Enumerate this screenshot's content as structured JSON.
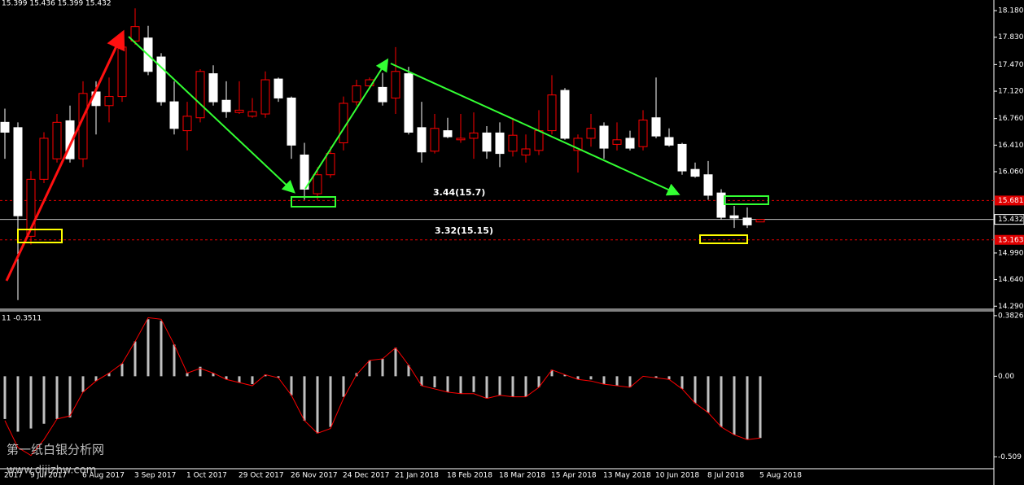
{
  "chart_data": [
    {
      "type": "candlestick",
      "title": "15.399 15.436 15.399 15.432",
      "categories": [
        "2017",
        null,
        "9 Jul 2017",
        null,
        null,
        null,
        "6 Aug 2017",
        null,
        null,
        null,
        "3 Sep 2017",
        null,
        null,
        null,
        "1 Oct 2017",
        null,
        null,
        null,
        "29 Oct 2017",
        null,
        null,
        null,
        "26 Nov 2017",
        null,
        null,
        null,
        "24 Dec 2017",
        null,
        null,
        null,
        "21 Jan 2018",
        null,
        null,
        null,
        "18 Feb 2018",
        null,
        null,
        null,
        "18 Mar 2018",
        null,
        null,
        null,
        "15 Apr 2018",
        null,
        null,
        null,
        "13 May 2018",
        null,
        null,
        null,
        "10 Jun 2018",
        null,
        null,
        null,
        "8 Jul 2018",
        null,
        null,
        null,
        "5 Aug 2018"
      ],
      "open": [
        16.71,
        16.64,
        15.21,
        15.96,
        16.23,
        16.73,
        16.23,
        17.11,
        16.93,
        17.05,
        17.78,
        17.82,
        17.57,
        16.98,
        16.6,
        16.77,
        17.35,
        17.0,
        16.84,
        16.79,
        16.82,
        17.28,
        17.03,
        16.28,
        15.77,
        16.02,
        16.44,
        16.98,
        17.19,
        17.17,
        17.03,
        17.35,
        16.64,
        16.33,
        16.6,
        16.48,
        16.5,
        16.57,
        16.57,
        16.33,
        16.28,
        16.34,
        16.6,
        17.13,
        16.34,
        16.5,
        16.66,
        16.42,
        16.5,
        16.39,
        16.77,
        16.51,
        16.42,
        16.09,
        16.02,
        15.78,
        15.48,
        15.45,
        15.399
      ],
      "high": [
        16.89,
        16.71,
        16.07,
        16.58,
        16.82,
        16.93,
        17.25,
        17.25,
        17.3,
        17.78,
        18.21,
        17.98,
        17.62,
        17.25,
        16.98,
        17.41,
        17.46,
        17.25,
        17.25,
        17.03,
        17.38,
        17.3,
        17.05,
        16.44,
        16.12,
        16.39,
        17.05,
        17.27,
        17.3,
        17.36,
        17.7,
        17.44,
        16.98,
        16.82,
        16.77,
        16.82,
        16.84,
        16.66,
        16.71,
        16.77,
        16.55,
        16.87,
        17.33,
        17.16,
        16.55,
        16.82,
        16.71,
        16.71,
        16.6,
        16.87,
        17.3,
        16.63,
        16.44,
        16.18,
        16.2,
        15.83,
        15.61,
        15.59,
        15.436
      ],
      "low": [
        16.23,
        14.37,
        15.1,
        15.91,
        16.18,
        16.18,
        16.12,
        16.55,
        16.71,
        16.98,
        17.73,
        17.33,
        16.93,
        16.55,
        16.34,
        16.71,
        16.93,
        16.77,
        16.82,
        16.77,
        16.77,
        16.98,
        16.23,
        15.69,
        15.69,
        15.98,
        16.34,
        16.93,
        17.16,
        16.93,
        16.82,
        16.55,
        16.18,
        16.3,
        16.5,
        16.44,
        16.23,
        16.23,
        16.12,
        16.26,
        16.18,
        16.28,
        16.55,
        16.48,
        16.05,
        16.39,
        16.23,
        16.34,
        16.34,
        16.34,
        16.5,
        16.39,
        16.02,
        15.98,
        15.69,
        15.43,
        15.32,
        15.32,
        15.399
      ],
      "close": [
        16.58,
        15.48,
        15.96,
        16.5,
        16.71,
        16.23,
        17.09,
        16.93,
        17.05,
        17.7,
        17.97,
        17.38,
        16.98,
        16.63,
        16.79,
        17.38,
        16.98,
        16.85,
        16.87,
        16.85,
        17.27,
        17.03,
        16.41,
        15.83,
        16.02,
        16.3,
        16.96,
        17.19,
        17.27,
        16.98,
        17.38,
        16.58,
        16.32,
        16.63,
        16.52,
        16.5,
        16.57,
        16.33,
        16.3,
        16.54,
        16.36,
        16.6,
        17.07,
        16.5,
        16.5,
        16.63,
        16.37,
        16.48,
        16.37,
        16.74,
        16.53,
        16.41,
        16.07,
        16.0,
        15.75,
        15.46,
        15.45,
        15.36,
        15.432
      ],
      "up_color": "#ff0000",
      "down_color": "#ffffff",
      "ylim": [
        14.25,
        18.32
      ],
      "yticks": [
        {
          "value": 18.18,
          "label": "18.180"
        },
        {
          "value": 17.83,
          "label": "17.830"
        },
        {
          "value": 17.47,
          "label": "17.470"
        },
        {
          "value": 17.12,
          "label": "17.120"
        },
        {
          "value": 16.76,
          "label": "16.760"
        },
        {
          "value": 16.41,
          "label": "16.410"
        },
        {
          "value": 16.06,
          "label": "16.060"
        },
        {
          "value": 14.99,
          "label": "14.990"
        },
        {
          "value": 14.64,
          "label": "14.640"
        },
        {
          "value": 14.29,
          "label": "14.290"
        }
      ],
      "levels": [
        {
          "value": 15.681,
          "label": "15.681",
          "color": "#e00000"
        },
        {
          "value": 15.432,
          "label": "15.432",
          "color": "#c0c0c0"
        },
        {
          "value": 15.163,
          "label": "15.163",
          "color": "#e00000"
        }
      ],
      "annotations": [
        "3.44(15.7)",
        "3.32(15.15)"
      ]
    },
    {
      "type": "bar",
      "title": "11 -0.3511",
      "values": [
        -0.27,
        -0.35,
        -0.33,
        -0.3,
        -0.27,
        -0.26,
        -0.1,
        -0.03,
        0.02,
        0.08,
        0.22,
        0.36,
        0.35,
        0.2,
        0.02,
        0.06,
        0.02,
        -0.02,
        -0.04,
        -0.05,
        0.01,
        -0.01,
        -0.12,
        -0.28,
        -0.36,
        -0.32,
        -0.13,
        0.02,
        0.1,
        0.11,
        0.18,
        0.07,
        -0.06,
        -0.07,
        -0.1,
        -0.11,
        -0.1,
        -0.14,
        -0.12,
        -0.13,
        -0.13,
        -0.07,
        0.04,
        0.01,
        -0.02,
        -0.02,
        -0.05,
        -0.06,
        -0.07,
        0.0,
        -0.01,
        -0.02,
        -0.08,
        -0.17,
        -0.23,
        -0.32,
        -0.37,
        -0.4,
        -0.39
      ],
      "signal": [
        -0.28,
        -0.45,
        -0.5,
        -0.4,
        -0.27,
        -0.25,
        -0.1,
        -0.03,
        0.02,
        0.08,
        0.22,
        0.37,
        0.36,
        0.2,
        0.02,
        0.05,
        0.02,
        -0.02,
        -0.04,
        -0.06,
        0.01,
        -0.01,
        -0.12,
        -0.28,
        -0.36,
        -0.33,
        -0.14,
        0.01,
        0.1,
        0.11,
        0.18,
        0.07,
        -0.06,
        -0.08,
        -0.1,
        -0.11,
        -0.11,
        -0.14,
        -0.12,
        -0.13,
        -0.13,
        -0.07,
        0.04,
        0.01,
        -0.02,
        -0.03,
        -0.05,
        -0.06,
        -0.07,
        0.0,
        -0.01,
        -0.02,
        -0.08,
        -0.17,
        -0.23,
        -0.32,
        -0.37,
        -0.4,
        -0.39
      ],
      "color": "#c0c0c0",
      "signal_color": "#ff0000",
      "ylim": [
        -0.584,
        0.413
      ],
      "yticks": [
        0.3826,
        {
          "value": 0,
          "label": "0.00"
        },
        -0.509
      ]
    }
  ],
  "watermark": [
    "第一纸白银分析网",
    "www.dijizhw.com"
  ]
}
